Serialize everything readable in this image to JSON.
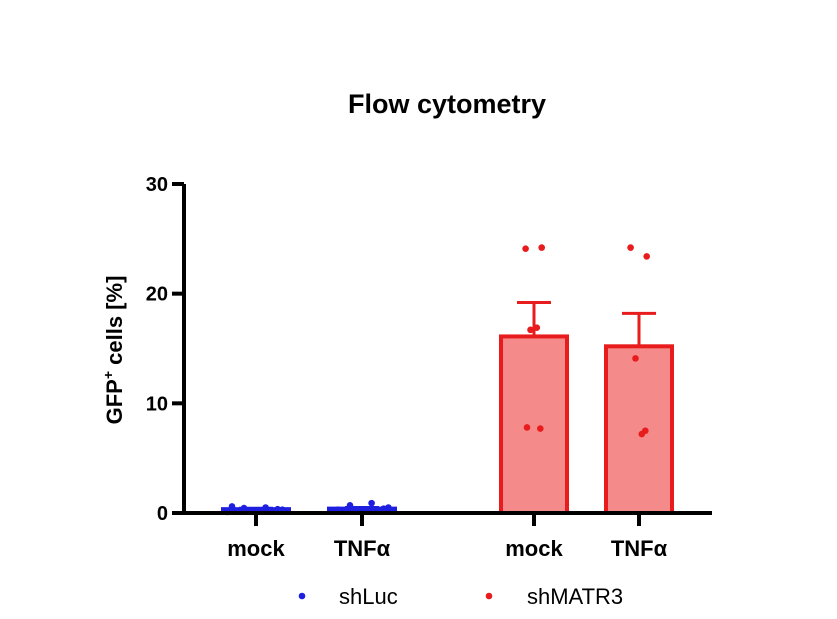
{
  "chart_data": {
    "type": "bar",
    "title": "Flow cytometry",
    "ylabel_main": "GFP",
    "ylabel_sup": "+",
    "ylabel_rest": " cells [%]",
    "ylim": [
      0,
      30
    ],
    "yticks": [
      0,
      10,
      20,
      30
    ],
    "categories": [
      "mock",
      "TNFα",
      "mock",
      "TNFα"
    ],
    "groups": [
      {
        "series": "shLuc",
        "category": "mock",
        "mean": 0.35,
        "sem": 0.08,
        "points": [
          0.1,
          0.3,
          0.45,
          0.5,
          0.35,
          0.6,
          0.2
        ]
      },
      {
        "series": "shLuc",
        "category": "TNFα",
        "mean": 0.4,
        "sem": 0.1,
        "points": [
          0.2,
          0.5,
          0.7,
          0.9,
          0.4,
          0.3,
          0.15
        ]
      },
      {
        "series": "shMATR3",
        "category": "mock",
        "mean": 16.1,
        "sem": 3.1,
        "points": [
          24.1,
          24.2,
          16.7,
          16.9,
          7.7,
          7.8
        ]
      },
      {
        "series": "shMATR3",
        "category": "TNFα",
        "mean": 15.2,
        "sem": 3.0,
        "points": [
          24.2,
          23.4,
          14.1,
          7.2,
          7.5
        ]
      }
    ],
    "series": [
      {
        "name": "shLuc",
        "color": "#1f1fe0",
        "fill": "#1f1fe0"
      },
      {
        "name": "shMATR3",
        "color": "#e81c1c",
        "fill": "#f48a8a"
      }
    ],
    "legend_position": "bottom",
    "grid": false
  }
}
